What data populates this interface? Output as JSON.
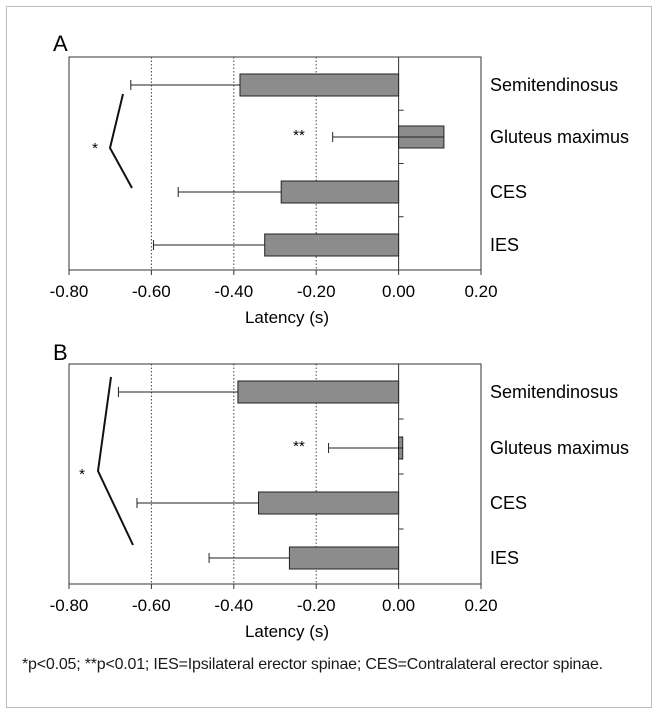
{
  "chart_data": [
    {
      "type": "bar",
      "orientation": "horizontal",
      "panel_label": "A",
      "categories": [
        "Semitendinosus",
        "Gluteus maximus",
        "CES",
        "IES"
      ],
      "values": [
        -0.385,
        0.11,
        -0.285,
        -0.325
      ],
      "error": [
        0.265,
        0.27,
        0.25,
        0.27
      ],
      "annotations": [
        {
          "category": "Gluteus maximus",
          "text": "**"
        },
        {
          "bracket": [
            "Semitendinosus",
            "CES"
          ],
          "text": "*"
        }
      ],
      "xlabel": "Latency (s)",
      "xlim": [
        -0.8,
        0.2
      ],
      "xticks": [
        "-0.80",
        "-0.60",
        "-0.40",
        "-0.20",
        "0.00",
        "0.20"
      ],
      "gridlines_dotted_at": [
        -0.6,
        -0.4,
        -0.2
      ],
      "bar_color": "#8c8c8c"
    },
    {
      "type": "bar",
      "orientation": "horizontal",
      "panel_label": "B",
      "categories": [
        "Semitendinosus",
        "Gluteus maximus",
        "CES",
        "IES"
      ],
      "values": [
        -0.39,
        0.01,
        -0.34,
        -0.265
      ],
      "error": [
        0.29,
        0.18,
        0.295,
        0.195
      ],
      "annotations": [
        {
          "category": "Gluteus maximus",
          "text": "**"
        },
        {
          "bracket": [
            "Semitendinosus",
            "IES"
          ],
          "text": "*"
        }
      ],
      "xlabel": "Latency (s)",
      "xlim": [
        -0.8,
        0.2
      ],
      "xticks": [
        "-0.80",
        "-0.60",
        "-0.40",
        "-0.20",
        "0.00",
        "0.20"
      ],
      "gridlines_dotted_at": [
        -0.6,
        -0.4,
        -0.2
      ],
      "bar_color": "#8c8c8c"
    }
  ],
  "footnote": "*p<0.05; **p<0.01; IES=Ipsilateral erector spinae; CES=Contralateral erector spinae."
}
